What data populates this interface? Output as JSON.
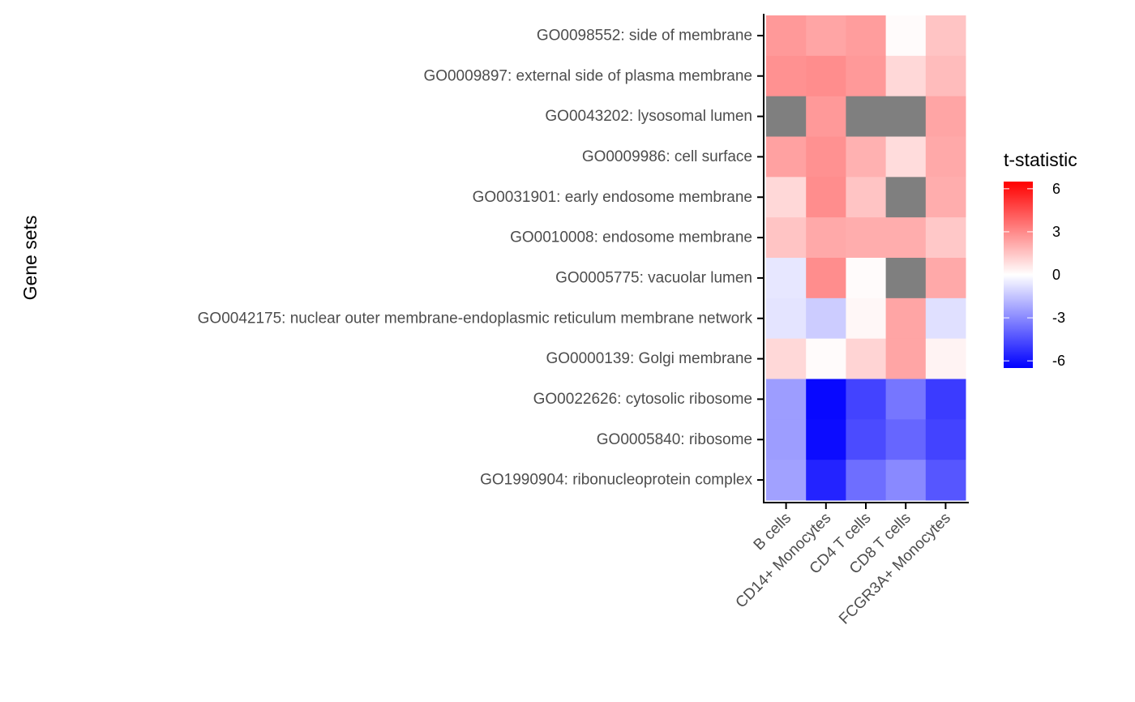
{
  "chart_data": {
    "type": "heatmap",
    "title": "",
    "xlabel": "",
    "ylabel": "Gene sets",
    "x_categories": [
      "B cells",
      "CD14+ Monocytes",
      "CD4 T cells",
      "CD8 T cells",
      "FCGR3A+ Monocytes"
    ],
    "y_categories": [
      "GO0098552: side of membrane",
      "GO0009897: external side of plasma membrane",
      "GO0043202: lysosomal lumen",
      "GO0009986: cell surface",
      "GO0031901: early endosome membrane",
      "GO0010008: endosome membrane",
      "GO0005775: vacuolar lumen",
      "GO0042175: nuclear outer membrane-endoplasmic reticulum membrane network",
      "GO0000139: Golgi membrane",
      "GO0022626: cytosolic ribosome",
      "GO0005840: ribosome",
      "GO1990904: ribonucleoprotein complex"
    ],
    "values": [
      [
        2.6,
        2.3,
        2.5,
        0.1,
        1.5
      ],
      [
        2.8,
        2.9,
        2.6,
        1.0,
        1.7
      ],
      [
        null,
        2.6,
        null,
        null,
        2.3
      ],
      [
        2.4,
        2.8,
        2.0,
        0.9,
        2.2
      ],
      [
        1.0,
        2.9,
        1.5,
        null,
        2.1
      ],
      [
        1.5,
        2.2,
        2.1,
        2.1,
        1.4
      ],
      [
        -0.6,
        2.9,
        0.1,
        null,
        2.2
      ],
      [
        -0.7,
        -1.3,
        0.2,
        2.3,
        -0.8
      ],
      [
        1.0,
        0.1,
        1.1,
        2.3,
        0.3
      ],
      [
        -2.5,
        -6.3,
        -4.8,
        -3.5,
        -5.0
      ],
      [
        -2.5,
        -6.2,
        -4.6,
        -3.9,
        -4.8
      ],
      [
        -2.4,
        -5.6,
        -3.7,
        -3.0,
        -4.3
      ]
    ],
    "na_color": "#7f7f7f",
    "legend": {
      "title": "t-statistic",
      "position": "right",
      "limits": [
        -6.5,
        6.5
      ],
      "ticks": [
        6,
        3,
        0,
        -3,
        -6
      ],
      "low_color": "#0000FF",
      "mid_color": "#FFFFFF",
      "high_color": "#FF0000"
    },
    "grid": false
  }
}
